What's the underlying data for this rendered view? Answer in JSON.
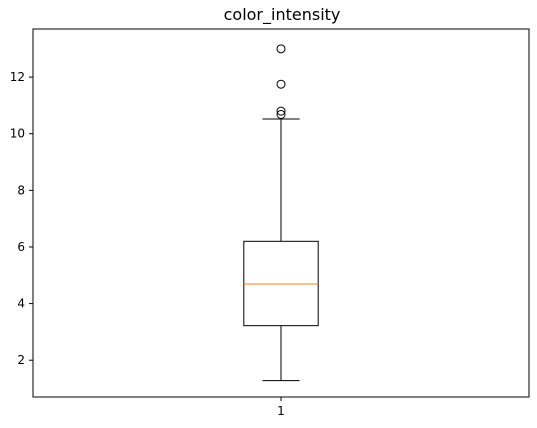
{
  "chart_data": {
    "type": "box",
    "title": "color_intensity",
    "xlabel": "",
    "ylabel": "",
    "categories": [
      "1"
    ],
    "ylim": [
      0.7,
      13.7
    ],
    "yticks": [
      2,
      4,
      6,
      8,
      10,
      12
    ],
    "grid": false,
    "boxes": [
      {
        "category": "1",
        "whisker_low": 1.28,
        "q1": 3.22,
        "median": 4.69,
        "q3": 6.2,
        "whisker_high": 10.52,
        "outliers": [
          10.68,
          10.8,
          11.75,
          13.0
        ]
      }
    ],
    "colors": {
      "box": "#000000",
      "median": "#ff7f0e",
      "outlier": "#000000"
    }
  }
}
